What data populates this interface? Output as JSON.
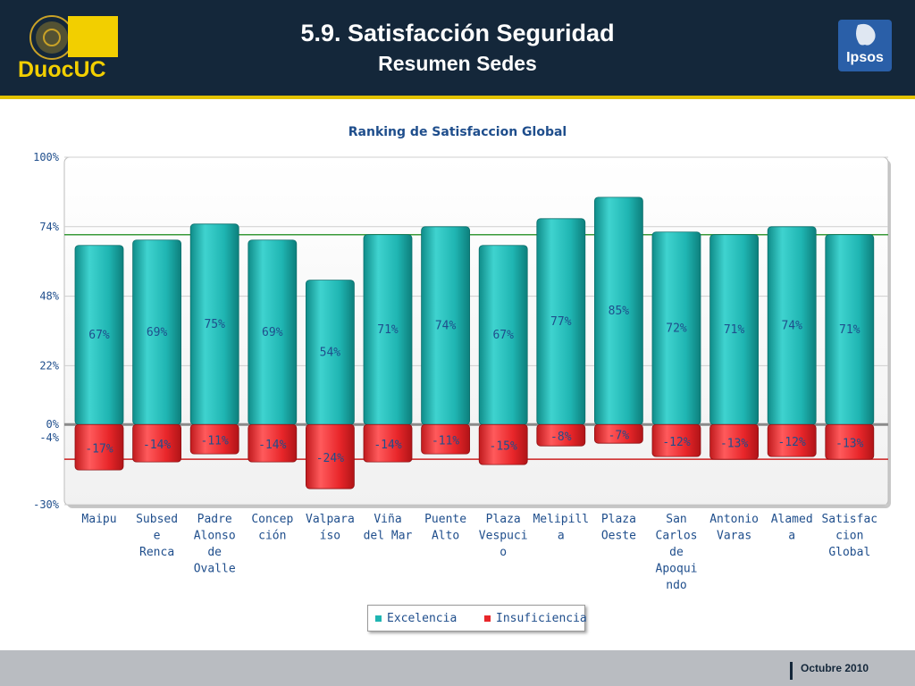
{
  "header": {
    "title": "5.9. Satisfacción Seguridad",
    "subtitle": "Resumen Sedes",
    "left_logo_text": "DuocUC",
    "right_logo_text": "Ipsos"
  },
  "footer": {
    "date": "Octubre 2010"
  },
  "colors": {
    "header_bg": "#14273a",
    "accent_yellow": "#e3c300",
    "excelencia": "#1fb5b2",
    "insuficiencia": "#e8262a",
    "ref_green": "#3a9a3a",
    "ref_red": "#cc2020"
  },
  "chart_data": {
    "type": "bar",
    "title": "Ranking de Satisfaccion Global",
    "ylim": [
      -30,
      100
    ],
    "y_ticks": [
      {
        "value": 100,
        "label": "100%"
      },
      {
        "value": 74,
        "label": "74%"
      },
      {
        "value": 48,
        "label": "48%"
      },
      {
        "value": 22,
        "label": "22%"
      },
      {
        "value": 0,
        "label": "0%"
      },
      {
        "value": -4,
        "label": "-4%"
      },
      {
        "value": -30,
        "label": "-30%"
      }
    ],
    "categories": [
      [
        "Maipu"
      ],
      [
        "Subsed",
        "e",
        "Renca"
      ],
      [
        "Padre",
        "Alonso",
        "de",
        "Ovalle"
      ],
      [
        "Concep",
        "ción"
      ],
      [
        "Valpara",
        "íso"
      ],
      [
        "Viña",
        "del Mar"
      ],
      [
        "Puente",
        "Alto"
      ],
      [
        "Plaza",
        "Vespuci",
        "o"
      ],
      [
        "Melipill",
        "a"
      ],
      [
        "Plaza",
        "Oeste"
      ],
      [
        "San",
        "Carlos",
        "de",
        "Apoqui",
        "ndo"
      ],
      [
        "Antonio",
        "Varas"
      ],
      [
        "Alamed",
        "a"
      ],
      [
        "Satisfac",
        "cion",
        "Global"
      ]
    ],
    "series": [
      {
        "name": "Excelencia",
        "values": [
          67,
          69,
          75,
          69,
          54,
          71,
          74,
          67,
          77,
          85,
          72,
          71,
          74,
          71
        ],
        "labels": [
          "67%",
          "69%",
          "75%",
          "69%",
          "54%",
          "71%",
          "74%",
          "67%",
          "77%",
          "85%",
          "72%",
          "71%",
          "74%",
          "71%"
        ]
      },
      {
        "name": "Insuficiencia",
        "values": [
          -17,
          -14,
          -11,
          -14,
          -24,
          -14,
          -11,
          -15,
          -8,
          -7,
          -12,
          -13,
          -12,
          -13
        ],
        "labels": [
          "-17%",
          "-14%",
          "-11%",
          "-14%",
          "-24%",
          "-14%",
          "-11%",
          "-15%",
          "-8%",
          "-7%",
          "-12%",
          "-13%",
          "-12%",
          "-13%"
        ]
      }
    ],
    "reference_lines": [
      {
        "value": 71,
        "color": "green"
      },
      {
        "value": -13,
        "color": "red"
      }
    ],
    "legend": [
      "Excelencia",
      "Insuficiencia"
    ],
    "legend_position": "bottom",
    "grid": true
  }
}
